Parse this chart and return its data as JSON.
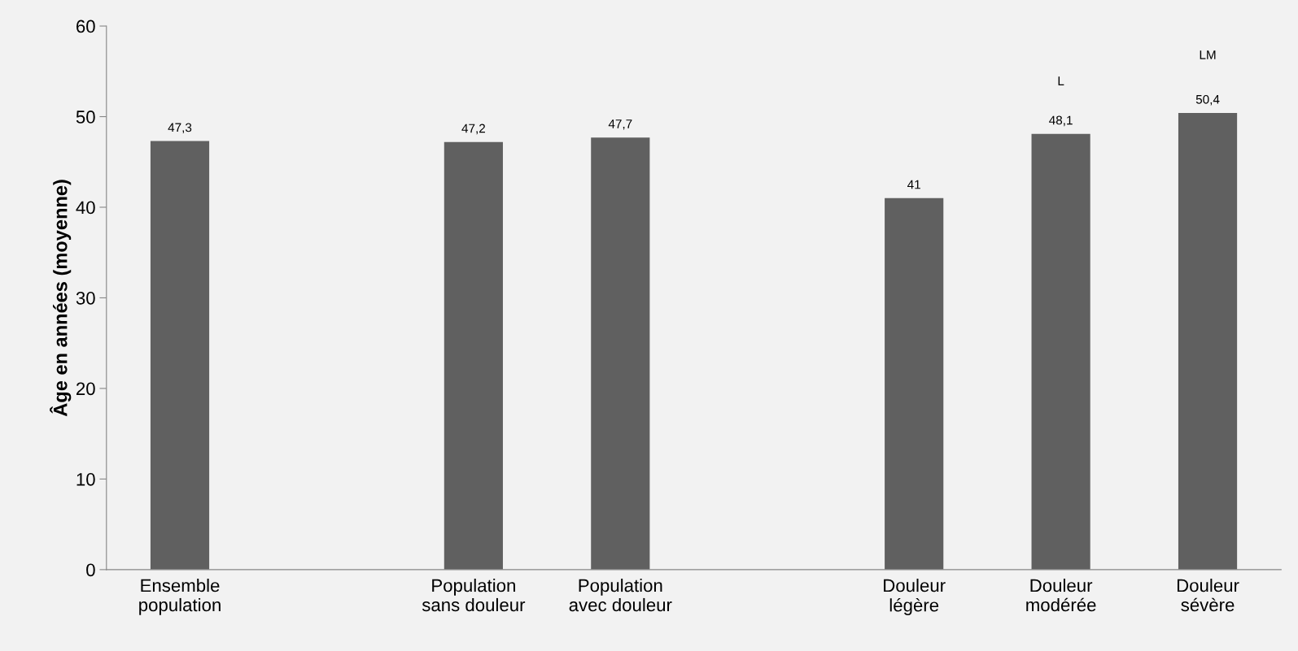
{
  "chart_data": {
    "type": "bar",
    "ylabel": "Âge en années (moyenne)",
    "categories": [
      "Ensemble\npopulation",
      null,
      "Population\nsans douleur",
      "Population\navec douleur",
      null,
      "Douleur\nlégère",
      "Douleur\nmodérée",
      "Douleur\nsévère"
    ],
    "values": [
      47.3,
      null,
      47.2,
      47.7,
      null,
      41,
      48.1,
      50.4
    ],
    "value_labels": [
      "47,3",
      null,
      "47,2",
      "47,7",
      null,
      "41",
      "48,1",
      "50,4"
    ],
    "color": "#606060",
    "ylim": [
      0,
      60
    ],
    "yticks": [
      0,
      10,
      20,
      30,
      40,
      50,
      60
    ],
    "grid": false,
    "annotations": [
      "L",
      "LM"
    ]
  }
}
